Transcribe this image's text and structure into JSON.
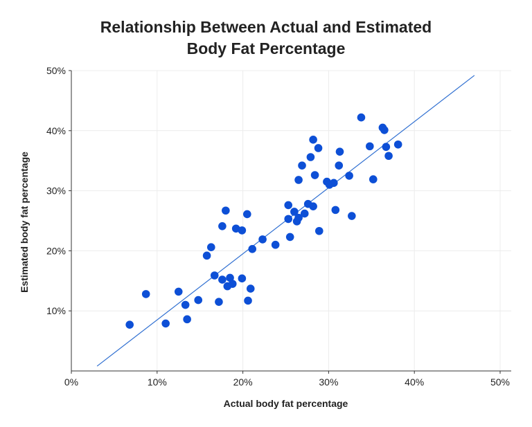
{
  "chart_data": {
    "type": "scatter",
    "title_line1": "Relationship Between Actual and Estimated",
    "title_line2": "Body Fat Percentage",
    "xlabel": "Actual body fat percentage",
    "ylabel": "Estimated body fat percentage",
    "xlim": [
      0,
      50
    ],
    "ylim": [
      0,
      50
    ],
    "x_ticks": [
      0,
      10,
      20,
      30,
      40,
      50
    ],
    "x_tick_labels": [
      "0%",
      "10%",
      "20%",
      "30%",
      "40%",
      "50%"
    ],
    "y_ticks": [
      10,
      20,
      30,
      40,
      50
    ],
    "y_tick_labels": [
      "10%",
      "20%",
      "30%",
      "40%",
      "50%"
    ],
    "grid": true,
    "point_color": "#0d4fd6",
    "line_color": "#2f6fd1",
    "trend_line": {
      "x": [
        3,
        47
      ],
      "y": [
        0.8,
        49.2
      ]
    },
    "points": [
      {
        "x": 6.8,
        "y": 7.7
      },
      {
        "x": 8.7,
        "y": 12.8
      },
      {
        "x": 11.0,
        "y": 7.9
      },
      {
        "x": 12.5,
        "y": 13.2
      },
      {
        "x": 13.3,
        "y": 11.0
      },
      {
        "x": 13.5,
        "y": 8.6
      },
      {
        "x": 14.8,
        "y": 11.8
      },
      {
        "x": 15.8,
        "y": 19.2
      },
      {
        "x": 16.3,
        "y": 20.6
      },
      {
        "x": 16.7,
        "y": 15.9
      },
      {
        "x": 17.2,
        "y": 11.5
      },
      {
        "x": 17.6,
        "y": 15.2
      },
      {
        "x": 17.6,
        "y": 24.1
      },
      {
        "x": 18.0,
        "y": 26.7
      },
      {
        "x": 18.2,
        "y": 14.1
      },
      {
        "x": 18.5,
        "y": 15.5
      },
      {
        "x": 18.8,
        "y": 14.5
      },
      {
        "x": 19.2,
        "y": 23.7
      },
      {
        "x": 19.9,
        "y": 23.4
      },
      {
        "x": 19.9,
        "y": 15.4
      },
      {
        "x": 20.5,
        "y": 26.1
      },
      {
        "x": 20.6,
        "y": 11.7
      },
      {
        "x": 20.9,
        "y": 13.7
      },
      {
        "x": 21.1,
        "y": 20.3
      },
      {
        "x": 22.3,
        "y": 21.9
      },
      {
        "x": 23.8,
        "y": 21.0
      },
      {
        "x": 25.3,
        "y": 27.6
      },
      {
        "x": 25.3,
        "y": 25.3
      },
      {
        "x": 25.5,
        "y": 22.3
      },
      {
        "x": 26.0,
        "y": 26.5
      },
      {
        "x": 26.3,
        "y": 24.9
      },
      {
        "x": 26.5,
        "y": 25.5
      },
      {
        "x": 26.5,
        "y": 31.8
      },
      {
        "x": 26.9,
        "y": 34.2
      },
      {
        "x": 27.2,
        "y": 26.2
      },
      {
        "x": 27.6,
        "y": 27.8
      },
      {
        "x": 27.9,
        "y": 35.6
      },
      {
        "x": 28.2,
        "y": 38.5
      },
      {
        "x": 28.2,
        "y": 27.4
      },
      {
        "x": 28.4,
        "y": 32.6
      },
      {
        "x": 28.8,
        "y": 37.1
      },
      {
        "x": 28.9,
        "y": 23.3
      },
      {
        "x": 29.8,
        "y": 31.5
      },
      {
        "x": 30.1,
        "y": 31.0
      },
      {
        "x": 30.6,
        "y": 31.3
      },
      {
        "x": 30.8,
        "y": 26.8
      },
      {
        "x": 31.2,
        "y": 34.2
      },
      {
        "x": 31.3,
        "y": 36.5
      },
      {
        "x": 32.4,
        "y": 32.5
      },
      {
        "x": 32.7,
        "y": 25.8
      },
      {
        "x": 33.8,
        "y": 42.2
      },
      {
        "x": 34.8,
        "y": 37.4
      },
      {
        "x": 35.2,
        "y": 31.9
      },
      {
        "x": 36.3,
        "y": 40.5
      },
      {
        "x": 36.5,
        "y": 40.1
      },
      {
        "x": 36.7,
        "y": 37.3
      },
      {
        "x": 37.0,
        "y": 35.8
      },
      {
        "x": 38.1,
        "y": 37.7
      }
    ]
  }
}
